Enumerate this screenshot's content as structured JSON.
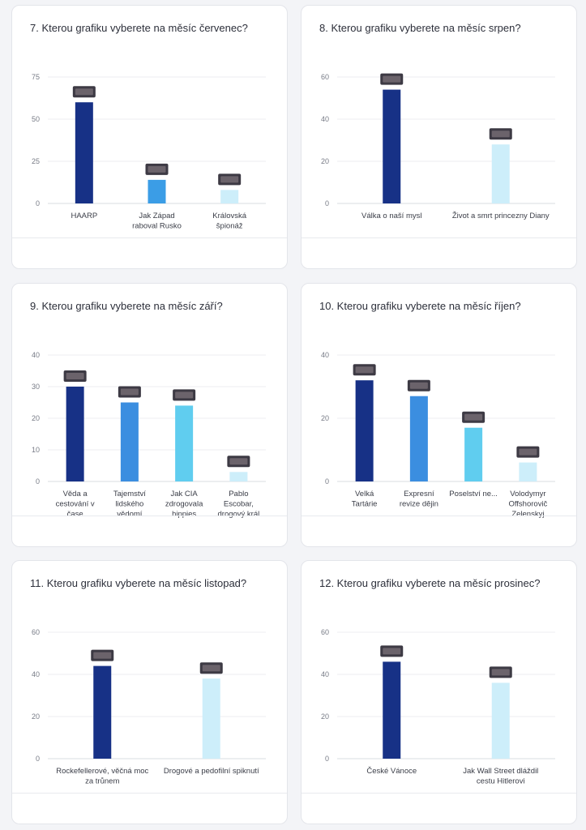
{
  "colors": {
    "dark": "#173186",
    "mid": "#3b8ee0",
    "light": "#60cdef",
    "pale": "#cdeefa"
  },
  "chart_data": [
    {
      "type": "bar",
      "title": "7. Kterou grafiku vyberete na měsíc červenec?",
      "categories": [
        "HAARP",
        "Jak Západ\nraboval Rusko",
        "Královská\nšpionáž"
      ],
      "values": [
        60,
        14,
        8
      ],
      "colors": [
        "#173186",
        "#3b9de6",
        "#cdeefa"
      ],
      "yticks": [
        0,
        25,
        50,
        75
      ],
      "ylim": [
        0,
        75
      ]
    },
    {
      "type": "bar",
      "title": "8. Kterou grafiku vyberete na měsíc srpen?",
      "categories": [
        "Válka o naší mysl",
        "Život a smrt princezny Diany"
      ],
      "values": [
        54,
        28
      ],
      "colors": [
        "#173186",
        "#cdeefa"
      ],
      "yticks": [
        0,
        20,
        40,
        60
      ],
      "ylim": [
        0,
        60
      ]
    },
    {
      "type": "bar",
      "title": "9. Kterou grafiku vyberete na měsíc září?",
      "categories": [
        "Věda a\ncestování v\nčase",
        "Tajemství\nlidského\nvědomí",
        "Jak CIA\nzdrogovala\nhippies",
        "Pablo\nEscobar,\ndrogový král"
      ],
      "values": [
        30,
        25,
        24,
        3
      ],
      "colors": [
        "#173186",
        "#3b8ee0",
        "#60cdef",
        "#cdeefa"
      ],
      "yticks": [
        0,
        10,
        20,
        30,
        40
      ],
      "ylim": [
        0,
        40
      ]
    },
    {
      "type": "bar",
      "title": "10. Kterou grafiku vyberete na měsíc říjen?",
      "categories": [
        "Velká\nTartárie",
        "Expresní\nrevize dějin",
        "Poselství ne...",
        "Volodymyr\nOffshorovič\nZelenskyj"
      ],
      "values": [
        32,
        27,
        17,
        6
      ],
      "colors": [
        "#173186",
        "#3b8ee0",
        "#60cdef",
        "#cdeefa"
      ],
      "yticks": [
        0,
        20,
        40
      ],
      "ylim": [
        0,
        40
      ]
    },
    {
      "type": "bar",
      "title": "11. Kterou grafiku vyberete na měsíc listopad?",
      "categories": [
        "Rockefellerové, věčná moc\nza trůnem",
        "Drogové a pedofilní spiknutí"
      ],
      "values": [
        44,
        38
      ],
      "colors": [
        "#173186",
        "#cdeefa"
      ],
      "yticks": [
        0,
        20,
        40,
        60
      ],
      "ylim": [
        0,
        60
      ]
    },
    {
      "type": "bar",
      "title": "12. Kterou grafiku vyberete na měsíc prosinec?",
      "categories": [
        "České Vánoce",
        "Jak Wall Street dláždil\ncestu Hitlerovi"
      ],
      "values": [
        46,
        36
      ],
      "colors": [
        "#173186",
        "#cdeefa"
      ],
      "yticks": [
        0,
        20,
        40,
        60
      ],
      "ylim": [
        0,
        60
      ]
    }
  ]
}
